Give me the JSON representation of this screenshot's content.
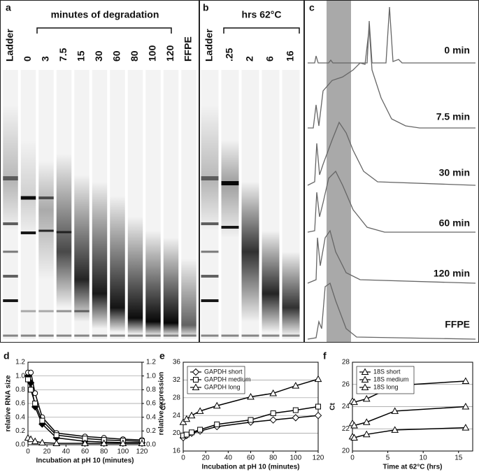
{
  "panels": {
    "a": "a",
    "b": "b",
    "c": "c",
    "d": "d",
    "e": "e",
    "f": "f"
  },
  "gel_a": {
    "header": "minutes of degradation",
    "lanes": [
      "Ladder",
      "0",
      "3",
      "7.5",
      "15",
      "30",
      "60",
      "80",
      "100",
      "120",
      "FFPE"
    ]
  },
  "gel_b": {
    "header": "hrs 62°C",
    "lanes": [
      "Ladder",
      ".25",
      "2",
      "6",
      "16"
    ]
  },
  "traces_c": {
    "labels": [
      "0 min",
      "7.5 min",
      "30 min",
      "60 min",
      "120 min",
      "FFPE"
    ]
  },
  "chart_data": [
    {
      "type": "line",
      "x_label": "Incubation at pH 10 (minutes)",
      "y_label": "relative RNA size",
      "y2_label": "relative expression",
      "x": [
        0,
        3,
        7.5,
        15,
        30,
        60,
        80,
        100,
        120
      ],
      "xlim": [
        0,
        120
      ],
      "xticks": [
        0,
        20,
        40,
        60,
        80,
        100,
        120
      ],
      "ylim": [
        0,
        1.2
      ],
      "yticks": [
        {
          "value": 0,
          "label": "0.0"
        },
        0.2,
        0.4,
        0.6,
        0.8,
        {
          "value": 1,
          "label": "1.0"
        },
        1.2
      ],
      "y2lim": [
        0,
        1.2
      ],
      "y2ticks": [
        {
          "value": 0,
          "label": "0.0"
        },
        0.2,
        0.4,
        0.6,
        0.8,
        {
          "value": 1,
          "label": "1.0"
        },
        1.2
      ],
      "grid": true,
      "series": [
        {
          "color": "#000000",
          "marker": "diamond-filled",
          "values": [
            1.0,
            0.9,
            0.55,
            0.3,
            0.1,
            0.05,
            0.04,
            0.03,
            0.03
          ]
        },
        {
          "color": "#000000",
          "marker": "circle",
          "axis": "y2",
          "values": [
            1.05,
            1.05,
            0.75,
            0.4,
            0.17,
            0.12,
            0.1,
            0.08,
            0.07
          ]
        },
        {
          "color": "#000000",
          "marker": "square",
          "axis": "y2",
          "values": [
            0.95,
            0.8,
            0.6,
            0.35,
            0.14,
            0.09,
            0.07,
            0.06,
            0.05
          ]
        },
        {
          "color": "#000000",
          "marker": "triangle",
          "axis": "y2",
          "values": [
            0.1,
            0.08,
            0.05,
            0.03,
            0.02,
            0.02,
            0.02,
            0.02,
            0.02
          ]
        }
      ]
    },
    {
      "type": "line",
      "x_label": "Incubation at pH 10 (minutes)",
      "y_label": "Ct",
      "x": [
        0,
        3,
        7.5,
        15,
        30,
        60,
        80,
        100,
        120
      ],
      "xlim": [
        0,
        120
      ],
      "xticks": [
        0,
        20,
        40,
        60,
        80,
        100,
        120
      ],
      "ylim": [
        16,
        36
      ],
      "yticks": [
        16,
        20,
        24,
        28,
        32,
        36
      ],
      "grid": true,
      "legend": "top-left",
      "series": [
        {
          "name": "GAPDH short",
          "color": "#000000",
          "marker": "diamond",
          "values": [
            19,
            19.5,
            20,
            20.5,
            21.5,
            22.5,
            23,
            23.5,
            24
          ]
        },
        {
          "name": "GAPDH medium",
          "color": "#000000",
          "marker": "square",
          "values": [
            19.5,
            19.7,
            20.2,
            20.8,
            22,
            23,
            24.5,
            25.2,
            26
          ]
        },
        {
          "name": "GAPDH long",
          "color": "#000000",
          "marker": "triangle",
          "values": [
            22.5,
            23.2,
            24,
            25,
            26.2,
            28.2,
            29,
            30.7,
            32.2
          ]
        }
      ]
    },
    {
      "type": "line",
      "x_label": "Time at 62°C (hrs)",
      "y_label": "Ct",
      "x": [
        0,
        0.25,
        2,
        6,
        16
      ],
      "xlim": [
        0,
        17
      ],
      "xticks": [
        0,
        5,
        10,
        15
      ],
      "ylim": [
        20,
        28
      ],
      "yticks": [
        20,
        22,
        24,
        26,
        28
      ],
      "grid": true,
      "legend": "top-left",
      "series": [
        {
          "name": "18S short",
          "color": "#000000",
          "marker": "triangle",
          "values": [
            21.3,
            21.2,
            21.5,
            21.9,
            22.1
          ]
        },
        {
          "name": "18S medium",
          "color": "#000000",
          "marker": "triangle",
          "values": [
            22.5,
            22.3,
            22.6,
            23.6,
            24.0
          ]
        },
        {
          "name": "18S long",
          "color": "#000000",
          "marker": "triangle",
          "values": [
            24.5,
            24.4,
            24.7,
            25.9,
            26.3
          ]
        }
      ]
    }
  ]
}
